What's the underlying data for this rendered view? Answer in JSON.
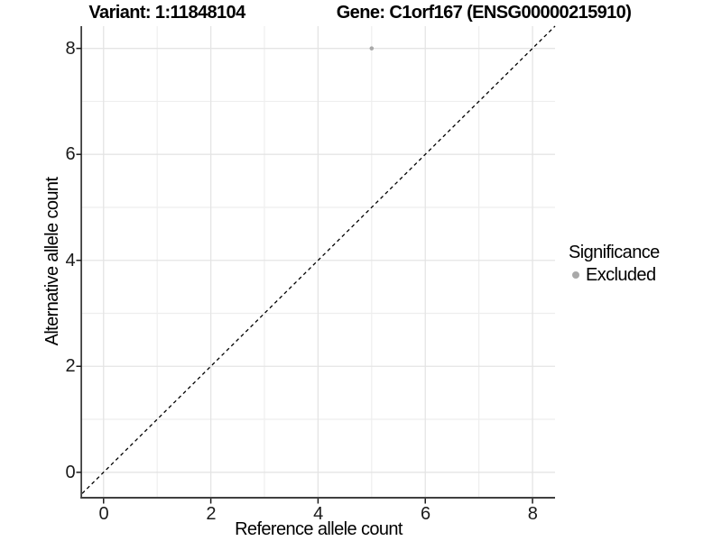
{
  "titles": {
    "variant": "Variant: 1:11848104",
    "gene": "Gene: C1orf167 (ENSG00000215910)"
  },
  "chart_data": {
    "type": "scatter",
    "title": "Variant: 1:11848104   Gene: C1orf167 (ENSG00000215910)",
    "xlabel": "Reference allele count",
    "ylabel": "Alternative allele count",
    "x_ticks": [
      0,
      2,
      4,
      6,
      8
    ],
    "y_ticks": [
      0,
      2,
      4,
      6,
      8
    ],
    "x_minor_ticks": [
      1,
      3,
      5,
      7
    ],
    "y_minor_ticks": [
      1,
      3,
      5,
      7
    ],
    "xlim": [
      -0.4,
      8.42
    ],
    "ylim": [
      -0.48,
      8.42
    ],
    "grid": true,
    "points": [
      {
        "x": 5,
        "y": 8,
        "series": "Excluded"
      }
    ],
    "identity_line": {
      "slope": 1,
      "intercept": 0,
      "style": "dashed"
    },
    "legend": {
      "title": "Significance",
      "position": "right",
      "items": [
        {
          "label": "Excluded",
          "color": "#a9a9a9"
        }
      ]
    }
  },
  "colors": {
    "background": "#ffffff",
    "point": "#a9a9a9",
    "grid_major": "#e4e4e4",
    "grid_minor": "#eeeeee",
    "axis_line": "#404040",
    "tick_mark": "#1a1a1a",
    "dashed_line": "#000000"
  }
}
